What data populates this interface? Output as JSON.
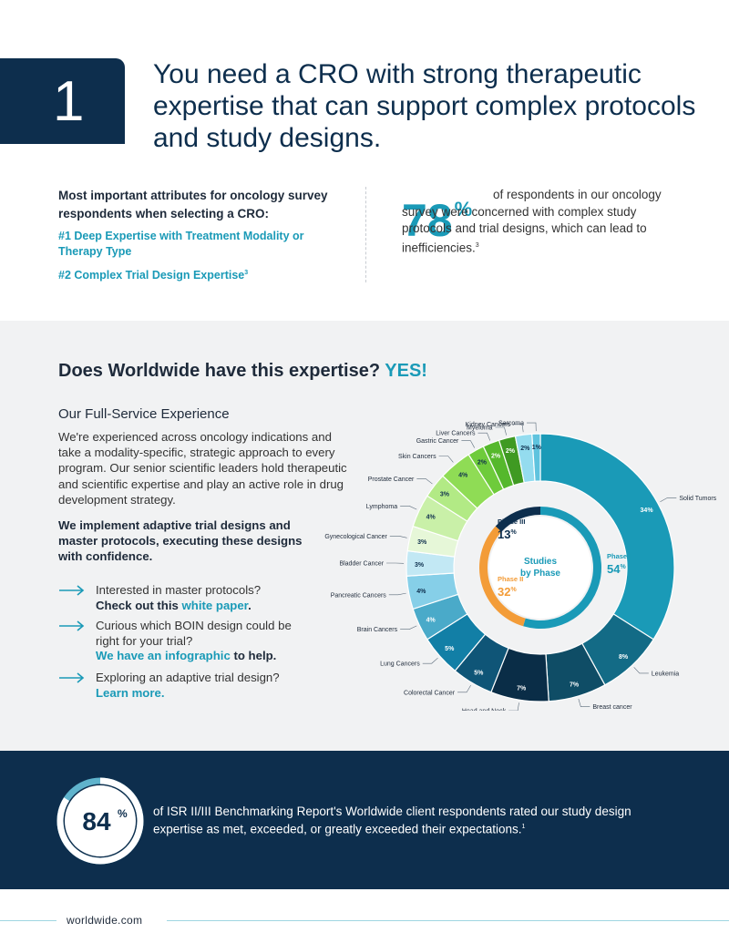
{
  "section": {
    "number": "1",
    "headline": "You need a CRO with strong therapeutic expertise that can support complex protocols and study designs."
  },
  "attributes": {
    "title": "Most important attributes for oncology survey respondents when selecting a CRO:",
    "item1": "#1 Deep Expertise with Treatment Modality or Therapy Type",
    "item2": "#2 Complex Trial Design Expertise",
    "item2_ref": "3"
  },
  "stat78": {
    "value": "78",
    "unit": "%",
    "text": "of respondents in our oncology survey were concerned with complex study protocols and trial designs, which can lead to inefficiencies.",
    "ref": "3"
  },
  "expertise": {
    "question": "Does Worldwide have this expertise?",
    "answer": "YES!",
    "subtitle": "Our Full-Service Experience",
    "body": "We're experienced across oncology indications and take a modality-specific, strategic approach to every program. Our senior scientific leaders hold therapeutic and scientific expertise and play an active role in drug development strategy.",
    "bold": "We implement adaptive trial designs and master protocols, executing these designs with confidence."
  },
  "links": [
    {
      "line1": "Interested in master protocols?",
      "bold_pre": "Check out this ",
      "link": "white paper",
      "post": "."
    },
    {
      "line1": "Curious which BOIN design could be right for your trial?",
      "bold_pre": "",
      "link": "We have an infographic",
      "post": " to help."
    },
    {
      "line1": "Exploring an adaptive trial design?",
      "bold_pre": "",
      "link": "Learn more.",
      "post": ""
    }
  ],
  "chart_data": {
    "type": "pie",
    "center_label": "Studies by Phase",
    "phases": [
      {
        "name": "Phase I",
        "value": 54,
        "color": "#1a9ab7"
      },
      {
        "name": "Phase II",
        "value": 32,
        "color": "#f39c38"
      },
      {
        "name": "Phase III",
        "value": 13,
        "color": "#0d2e4d"
      }
    ],
    "indications": [
      {
        "name": "Solid Tumors",
        "value": 34,
        "color": "#1a9ab7"
      },
      {
        "name": "Leukemia",
        "value": 8,
        "color": "#136b86"
      },
      {
        "name": "Breast cancer",
        "value": 7,
        "color": "#0f4d66"
      },
      {
        "name": "Head and Neck",
        "value": 7,
        "color": "#0a2d47"
      },
      {
        "name": "Colorectal Cancer",
        "value": 5,
        "color": "#0f5577"
      },
      {
        "name": "Lung Cancers",
        "value": 5,
        "color": "#127fa6"
      },
      {
        "name": "Brain Cancers",
        "value": 4,
        "color": "#4aaac9"
      },
      {
        "name": "Pancreatic Cancers",
        "value": 4,
        "color": "#86cfe8"
      },
      {
        "name": "Bladder Cancer",
        "value": 3,
        "color": "#c2e8f4"
      },
      {
        "name": "Gynecological Cancer",
        "value": 3,
        "color": "#e6f7d8"
      },
      {
        "name": "Lymphoma",
        "value": 4,
        "color": "#c9f0a8"
      },
      {
        "name": "Prostate Cancer",
        "value": 3,
        "color": "#b2ea85"
      },
      {
        "name": "Skin Cancers",
        "value": 4,
        "color": "#8fdc55"
      },
      {
        "name": "Gastric Cancer",
        "value": 2,
        "color": "#6ecb3b"
      },
      {
        "name": "Liver Cancers",
        "value": 2,
        "color": "#55b82c"
      },
      {
        "name": "Myeloma",
        "value": 2,
        "color": "#3f9a22"
      },
      {
        "name": "Kidney Cancers",
        "value": 2,
        "color": "#94dcef"
      },
      {
        "name": "Sarcoma",
        "value": 1,
        "color": "#5fc3de"
      }
    ],
    "unit": "%"
  },
  "stat84": {
    "value": "84",
    "unit": "%",
    "text": "of ISR II/III Benchmarking Report's Worldwide client respondents rated our study design expertise as met, exceeded, or greatly exceeded their expectations.",
    "ref": "1"
  },
  "footer": {
    "url": "worldwide.com"
  },
  "colors": {
    "navy": "#0d2e4d",
    "teal": "#1a9ab7",
    "orange": "#f39c38"
  }
}
